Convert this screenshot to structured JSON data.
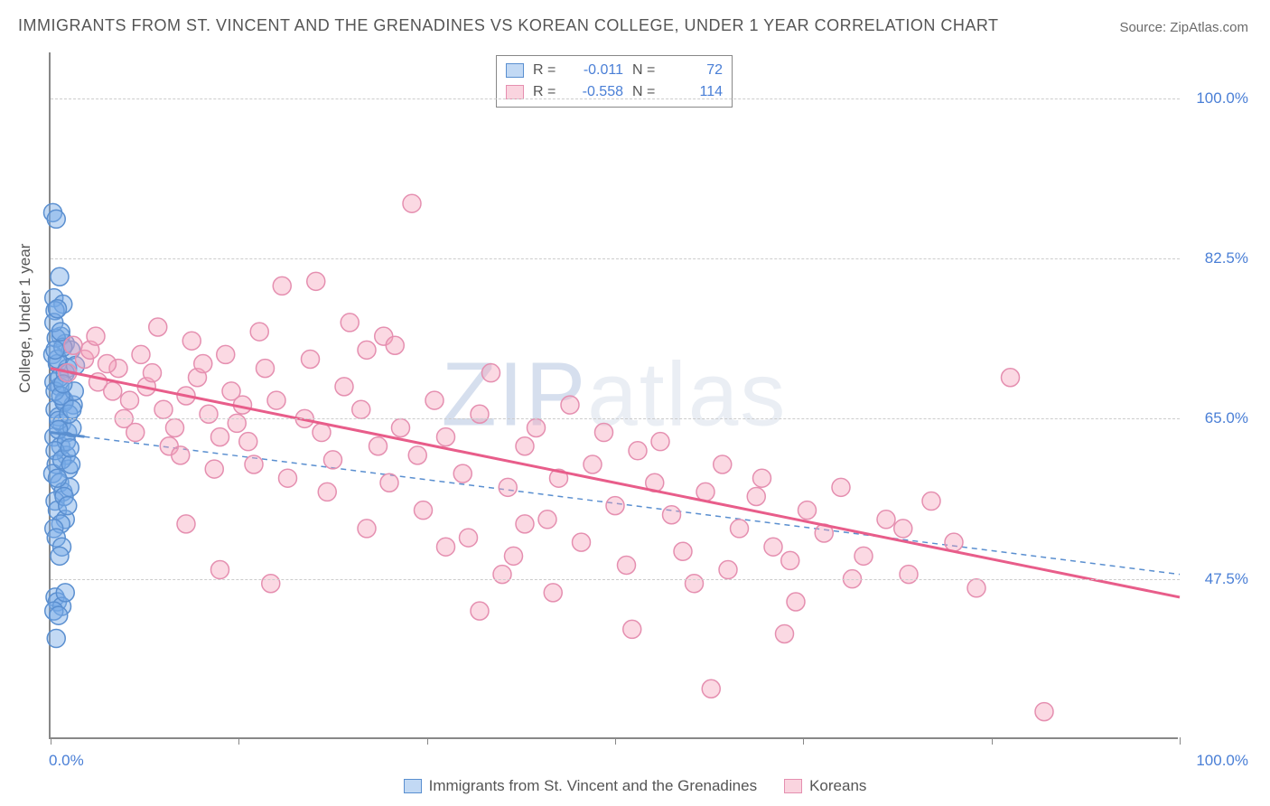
{
  "title": "IMMIGRANTS FROM ST. VINCENT AND THE GRENADINES VS KOREAN COLLEGE, UNDER 1 YEAR CORRELATION CHART",
  "source": "Source: ZipAtlas.com",
  "ylabel": "College, Under 1 year",
  "watermark": "ZIPatlas",
  "chart": {
    "type": "scatter",
    "xlim": [
      0,
      100
    ],
    "ylim": [
      30,
      105
    ],
    "grid_y": [
      47.5,
      65.0,
      82.5,
      100.0
    ],
    "grid_color": "#cccccc",
    "ytick_labels": [
      "47.5%",
      "65.0%",
      "82.5%",
      "100.0%"
    ],
    "xtick_positions": [
      0,
      16.67,
      33.33,
      50,
      66.67,
      83.33,
      100
    ],
    "xtick_labels": {
      "start": "0.0%",
      "end": "100.0%"
    },
    "background_color": "#ffffff",
    "axis_color": "#888888",
    "label_fontsize": 17,
    "title_fontsize": 18,
    "marker_radius": 10,
    "series": [
      {
        "name": "Immigrants from St. Vincent and the Grenadines",
        "color_fill": "rgba(120,170,230,0.45)",
        "color_stroke": "#5a8fd0",
        "R": "-0.011",
        "N": "72",
        "trend": {
          "x1": 0,
          "y1": 63.5,
          "x2": 100,
          "y2": 48.0,
          "style": "dashed",
          "solid_span": [
            0,
            3
          ]
        },
        "points": [
          [
            0.2,
            87.5
          ],
          [
            0.5,
            86.8
          ],
          [
            0.8,
            80.5
          ],
          [
            0.3,
            78.2
          ],
          [
            1.1,
            77.5
          ],
          [
            0.4,
            76.8
          ],
          [
            0.9,
            74.0
          ],
          [
            1.3,
            73.2
          ],
          [
            0.2,
            72.0
          ],
          [
            0.6,
            71.0
          ],
          [
            1.5,
            70.5
          ],
          [
            0.3,
            69.0
          ],
          [
            0.8,
            68.5
          ],
          [
            1.8,
            72.5
          ],
          [
            1.2,
            67.0
          ],
          [
            0.4,
            66.0
          ],
          [
            0.7,
            65.2
          ],
          [
            1.0,
            64.5
          ],
          [
            2.0,
            66.5
          ],
          [
            0.3,
            63.0
          ],
          [
            0.9,
            62.0
          ],
          [
            1.4,
            61.0
          ],
          [
            0.5,
            60.0
          ],
          [
            0.2,
            59.0
          ],
          [
            1.6,
            59.5
          ],
          [
            0.8,
            58.0
          ],
          [
            1.1,
            57.0
          ],
          [
            0.4,
            56.0
          ],
          [
            0.6,
            55.0
          ],
          [
            1.3,
            54.0
          ],
          [
            0.9,
            53.5
          ],
          [
            0.3,
            53.0
          ],
          [
            1.7,
            57.5
          ],
          [
            0.5,
            52.0
          ],
          [
            1.0,
            51.0
          ],
          [
            1.5,
            63.5
          ],
          [
            0.7,
            64.8
          ],
          [
            1.2,
            66.8
          ],
          [
            0.4,
            68.0
          ],
          [
            0.8,
            69.5
          ],
          [
            1.9,
            64.0
          ],
          [
            0.6,
            71.5
          ],
          [
            1.3,
            70.0
          ],
          [
            0.5,
            73.8
          ],
          [
            1.1,
            72.8
          ],
          [
            2.1,
            68.0
          ],
          [
            0.3,
            75.5
          ],
          [
            0.9,
            74.5
          ],
          [
            1.6,
            65.5
          ],
          [
            0.7,
            63.8
          ],
          [
            1.4,
            62.5
          ],
          [
            0.4,
            61.5
          ],
          [
            1.0,
            60.5
          ],
          [
            1.8,
            60.0
          ],
          [
            0.6,
            58.5
          ],
          [
            1.2,
            56.5
          ],
          [
            0.8,
            50.0
          ],
          [
            0.4,
            45.5
          ],
          [
            0.6,
            45.0
          ],
          [
            1.0,
            44.5
          ],
          [
            0.3,
            44.0
          ],
          [
            0.7,
            43.5
          ],
          [
            1.3,
            46.0
          ],
          [
            0.5,
            41.0
          ],
          [
            1.5,
            55.5
          ],
          [
            0.9,
            67.5
          ],
          [
            2.2,
            70.8
          ],
          [
            1.7,
            61.8
          ],
          [
            0.6,
            77.0
          ],
          [
            1.1,
            68.8
          ],
          [
            0.4,
            72.5
          ],
          [
            1.9,
            66.0
          ]
        ]
      },
      {
        "name": "Koreans",
        "color_fill": "rgba(244,160,185,0.40)",
        "color_stroke": "#e58fb0",
        "R": "-0.558",
        "N": "114",
        "trend": {
          "x1": 0,
          "y1": 70.5,
          "x2": 100,
          "y2": 45.5,
          "style": "solid"
        },
        "points": [
          [
            1.5,
            70.0
          ],
          [
            3.0,
            71.5
          ],
          [
            4.2,
            69.0
          ],
          [
            2.0,
            73.0
          ],
          [
            5.5,
            68.0
          ],
          [
            3.5,
            72.5
          ],
          [
            6.0,
            70.5
          ],
          [
            4.0,
            74.0
          ],
          [
            7.0,
            67.0
          ],
          [
            5.0,
            71.0
          ],
          [
            8.5,
            68.5
          ],
          [
            6.5,
            65.0
          ],
          [
            9.0,
            70.0
          ],
          [
            7.5,
            63.5
          ],
          [
            10.0,
            66.0
          ],
          [
            8.0,
            72.0
          ],
          [
            11.0,
            64.0
          ],
          [
            9.5,
            75.0
          ],
          [
            12.0,
            67.5
          ],
          [
            10.5,
            62.0
          ],
          [
            13.0,
            69.5
          ],
          [
            11.5,
            61.0
          ],
          [
            14.0,
            65.5
          ],
          [
            12.5,
            73.5
          ],
          [
            15.0,
            63.0
          ],
          [
            13.5,
            71.0
          ],
          [
            16.0,
            68.0
          ],
          [
            14.5,
            59.5
          ],
          [
            17.0,
            66.5
          ],
          [
            15.5,
            72.0
          ],
          [
            18.0,
            60.0
          ],
          [
            16.5,
            64.5
          ],
          [
            19.0,
            70.5
          ],
          [
            17.5,
            62.5
          ],
          [
            20.0,
            67.0
          ],
          [
            18.5,
            74.5
          ],
          [
            21.0,
            58.5
          ],
          [
            20.5,
            79.5
          ],
          [
            22.5,
            65.0
          ],
          [
            24.0,
            63.5
          ],
          [
            23.0,
            71.5
          ],
          [
            25.0,
            60.5
          ],
          [
            26.0,
            68.5
          ],
          [
            24.5,
            57.0
          ],
          [
            27.5,
            66.0
          ],
          [
            29.0,
            62.0
          ],
          [
            28.0,
            72.5
          ],
          [
            30.0,
            58.0
          ],
          [
            31.0,
            64.0
          ],
          [
            29.5,
            74.0
          ],
          [
            32.5,
            61.0
          ],
          [
            34.0,
            67.0
          ],
          [
            33.0,
            55.0
          ],
          [
            35.0,
            63.0
          ],
          [
            36.5,
            59.0
          ],
          [
            38.0,
            65.5
          ],
          [
            37.0,
            52.0
          ],
          [
            39.0,
            70.0
          ],
          [
            40.5,
            57.5
          ],
          [
            42.0,
            62.0
          ],
          [
            41.0,
            50.0
          ],
          [
            43.0,
            64.0
          ],
          [
            45.0,
            58.5
          ],
          [
            44.0,
            54.0
          ],
          [
            46.0,
            66.5
          ],
          [
            48.0,
            60.0
          ],
          [
            47.0,
            51.5
          ],
          [
            49.0,
            63.5
          ],
          [
            50.0,
            55.5
          ],
          [
            52.0,
            61.5
          ],
          [
            51.0,
            49.0
          ],
          [
            53.5,
            58.0
          ],
          [
            55.0,
            54.5
          ],
          [
            54.0,
            62.5
          ],
          [
            56.0,
            50.5
          ],
          [
            58.0,
            57.0
          ],
          [
            57.0,
            47.0
          ],
          [
            59.5,
            60.0
          ],
          [
            61.0,
            53.0
          ],
          [
            60.0,
            48.5
          ],
          [
            62.5,
            56.5
          ],
          [
            64.0,
            51.0
          ],
          [
            63.0,
            58.5
          ],
          [
            65.5,
            49.5
          ],
          [
            67.0,
            55.0
          ],
          [
            66.0,
            45.0
          ],
          [
            68.5,
            52.5
          ],
          [
            70.0,
            57.5
          ],
          [
            72.0,
            50.0
          ],
          [
            74.0,
            54.0
          ],
          [
            76.0,
            48.0
          ],
          [
            78.0,
            56.0
          ],
          [
            80.0,
            51.5
          ],
          [
            82.0,
            46.5
          ],
          [
            85.0,
            69.5
          ],
          [
            88.0,
            33.0
          ],
          [
            32.0,
            88.5
          ],
          [
            28.0,
            53.0
          ],
          [
            35.0,
            51.0
          ],
          [
            38.0,
            44.0
          ],
          [
            51.5,
            42.0
          ],
          [
            65.0,
            41.5
          ],
          [
            42.0,
            53.5
          ],
          [
            23.5,
            80.0
          ],
          [
            19.5,
            47.0
          ],
          [
            15.0,
            48.5
          ],
          [
            12.0,
            53.5
          ],
          [
            26.5,
            75.5
          ],
          [
            30.5,
            73.0
          ],
          [
            58.5,
            35.5
          ],
          [
            71.0,
            47.5
          ],
          [
            75.5,
            53.0
          ],
          [
            40.0,
            48.0
          ],
          [
            44.5,
            46.0
          ]
        ]
      }
    ],
    "legend_bottom": [
      {
        "swatch": "blue",
        "label": "Immigrants from St. Vincent and the Grenadines"
      },
      {
        "swatch": "pink",
        "label": "Koreans"
      }
    ]
  }
}
